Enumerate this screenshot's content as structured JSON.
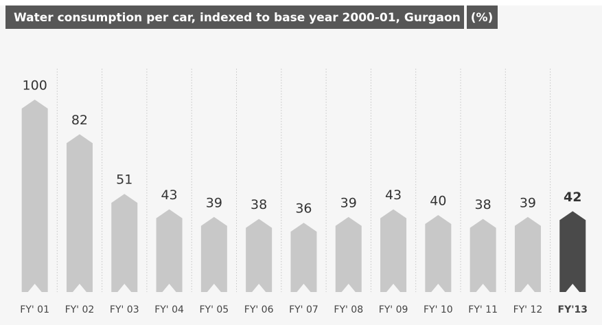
{
  "chart_data": {
    "type": "bar",
    "title": "Water consumption per car, indexed to base year 2000-01, Gurgaon",
    "unit": "(%)",
    "categories": [
      "FY' 01",
      "FY' 02",
      "FY' 03",
      "FY' 04",
      "FY' 05",
      "FY' 06",
      "FY' 07",
      "FY' 08",
      "FY' 09",
      "FY' 10",
      "FY' 11",
      "FY' 12",
      "FY'13"
    ],
    "values": [
      100,
      82,
      51,
      43,
      39,
      38,
      36,
      39,
      43,
      40,
      38,
      39,
      42
    ],
    "colors": [
      "#c8c8c8",
      "#c8c8c8",
      "#c8c8c8",
      "#c8c8c8",
      "#c8c8c8",
      "#c8c8c8",
      "#c8c8c8",
      "#c8c8c8",
      "#c8c8c8",
      "#c8c8c8",
      "#c8c8c8",
      "#c8c8c8",
      "#4a4a4a"
    ]
  }
}
